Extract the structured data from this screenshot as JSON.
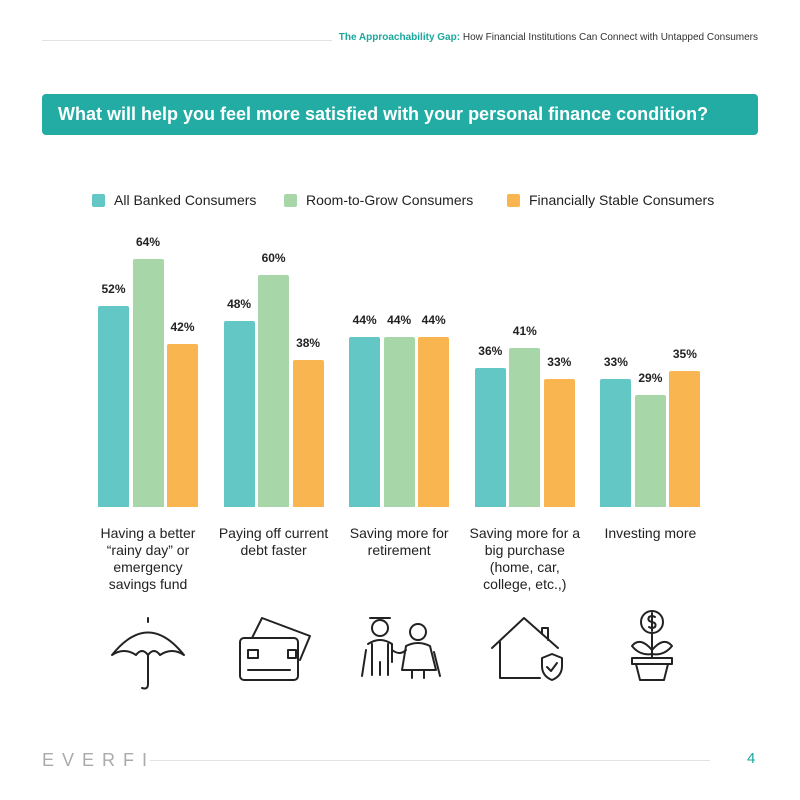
{
  "header": {
    "title_bold": "The Approachability Gap:",
    "title_rest": "How Financial Institutions Can Connect with Untapped Consumers"
  },
  "banner": "What will help you feel more satisfied with your personal finance condition?",
  "chart_data": {
    "type": "bar",
    "categories": [
      "Having a better “rainy day” or emergency savings fund",
      "Paying off current debt faster",
      "Saving more for retirement",
      "Saving more for a big purchase (home, car, college, etc.,)",
      "Investing more"
    ],
    "series": [
      {
        "name": "All Banked Consumers",
        "color": "#63c7c6",
        "values": [
          52,
          48,
          44,
          36,
          33
        ],
        "value_labels": [
          "52%",
          "48%",
          "44%",
          "36%",
          "33%"
        ]
      },
      {
        "name": "Room-to-Grow Consumers",
        "color": "#a7d7a9",
        "values": [
          64,
          60,
          44,
          41,
          29
        ],
        "value_labels": [
          "64%",
          "60%",
          "44%",
          "41%",
          "29%"
        ]
      },
      {
        "name": "Financially Stable Consumers",
        "color": "#f9b54f",
        "values": [
          42,
          38,
          44,
          33,
          35
        ],
        "value_labels": [
          "42%",
          "38%",
          "44%",
          "33%",
          "35%"
        ]
      }
    ]
  },
  "footer": {
    "logo": "EVERFI",
    "page": "4"
  }
}
